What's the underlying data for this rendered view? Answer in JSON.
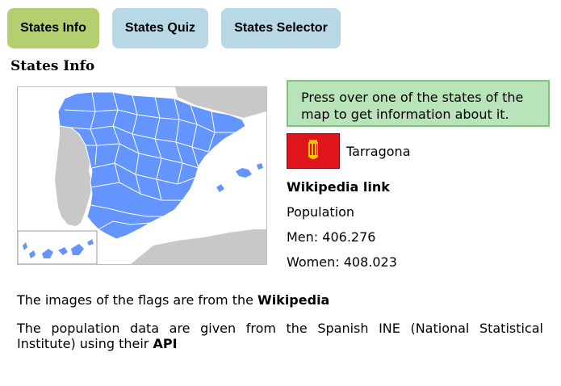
{
  "tabs": {
    "info": "States Info",
    "quiz": "States Quiz",
    "selector": "States Selector"
  },
  "page_title": "States Info",
  "hint": "Press over one of the states of the map to get information about it.",
  "selected_state": {
    "name": "Tarragona",
    "wikipedia_link": "Wikipedia link",
    "population_label": "Population",
    "men_label": "Men:",
    "men_value": "406.276",
    "women_label": "Women:",
    "women_value": "408.023"
  },
  "footer": {
    "flags_text": "The images of the flags are from the",
    "flags_source": "Wikipedia",
    "population_text": "The population data are given from the Spanish INE (National Statistical Institute) using their",
    "population_source": "API"
  },
  "colors": {
    "active_tab": "#b5cf70",
    "inactive_tab": "#b7d8e4",
    "map_states": "#6495ff",
    "map_other": "#c8c8c8",
    "hint_bg": "#b9e3b9",
    "flag_red": "#e0141b"
  }
}
